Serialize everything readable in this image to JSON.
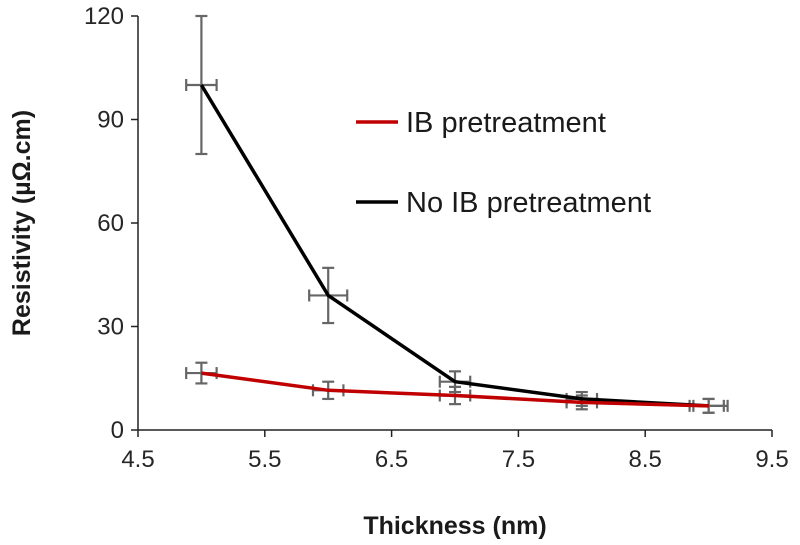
{
  "chart_data": {
    "type": "line",
    "xlabel": "Thickness (nm)",
    "ylabel": "Resistivity  (µΩ.cm)",
    "xlim": [
      4.5,
      9.5
    ],
    "ylim": [
      0,
      120
    ],
    "xticks": [
      "4.5",
      "5.5",
      "6.5",
      "7.5",
      "8.5",
      "9.5"
    ],
    "yticks": [
      "0",
      "30",
      "60",
      "90",
      "120"
    ],
    "grid": false,
    "legend_position": "top-right",
    "series": [
      {
        "name": "IB pretreatment",
        "color": "#c00000",
        "points": [
          {
            "x": 5,
            "y": 16.5,
            "yerr": 3,
            "xerr": 0.12
          },
          {
            "x": 6,
            "y": 11.5,
            "yerr": 2.5,
            "xerr": 0.12
          },
          {
            "x": 7,
            "y": 10,
            "yerr": 2.5,
            "xerr": 0.12
          },
          {
            "x": 8,
            "y": 8,
            "yerr": 2,
            "xerr": 0.12
          },
          {
            "x": 9,
            "y": 7,
            "yerr": 2,
            "xerr": 0.12
          }
        ]
      },
      {
        "name": "No IB pretreatment",
        "color": "#000000",
        "points": [
          {
            "x": 5,
            "y": 100,
            "yerr": 20,
            "xerr": 0.12
          },
          {
            "x": 6,
            "y": 39,
            "yerr": 8,
            "xerr": 0.15
          },
          {
            "x": 7,
            "y": 14,
            "yerr": 3,
            "xerr": 0.12
          },
          {
            "x": 8,
            "y": 9,
            "yerr": 2,
            "xerr": 0.12
          },
          {
            "x": 9,
            "y": 7,
            "yerr": 2,
            "xerr": 0.15
          }
        ]
      }
    ]
  }
}
